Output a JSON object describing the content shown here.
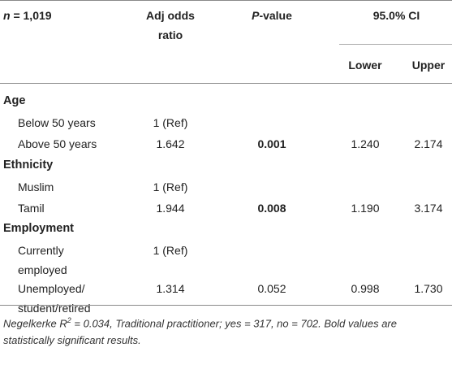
{
  "header": {
    "n_prefix": "n",
    "n_suffix": " = 1,019",
    "adj_line1": "Adj odds",
    "adj_line2": "ratio",
    "p_prefix": "P",
    "p_suffix": "-value",
    "ci": "95.0% CI",
    "lower": "Lower",
    "upper": "Upper"
  },
  "sections": [
    {
      "category": "Age",
      "rows": [
        {
          "label": [
            "Below 50 years"
          ],
          "or": "1 (Ref)",
          "p": "",
          "p_bold": false,
          "lower": "",
          "upper": ""
        },
        {
          "label": [
            "Above 50 years"
          ],
          "or": "1.642",
          "p": "0.001",
          "p_bold": true,
          "lower": "1.240",
          "upper": "2.174"
        }
      ]
    },
    {
      "category": "Ethnicity",
      "rows": [
        {
          "label": [
            "Muslim"
          ],
          "or": "1 (Ref)",
          "p": "",
          "p_bold": false,
          "lower": "",
          "upper": ""
        },
        {
          "label": [
            "Tamil"
          ],
          "or": "1.944",
          "p": "0.008",
          "p_bold": true,
          "lower": "1.190",
          "upper": "3.174"
        }
      ]
    },
    {
      "category": "Employment",
      "rows": [
        {
          "label": [
            "Currently",
            "employed"
          ],
          "or": "1 (Ref)",
          "p": "",
          "p_bold": false,
          "lower": "",
          "upper": ""
        },
        {
          "label": [
            "Unemployed/",
            "student/retired"
          ],
          "or": "1.314",
          "p": "0.052",
          "p_bold": false,
          "lower": "0.998",
          "upper": "1.730"
        }
      ]
    }
  ],
  "footnote": {
    "part1": "Negelkerke R",
    "sup": "2",
    "part2": " = 0.034, Traditional practitioner; yes = 317, no = 702. Bold values are statistically significant results."
  }
}
